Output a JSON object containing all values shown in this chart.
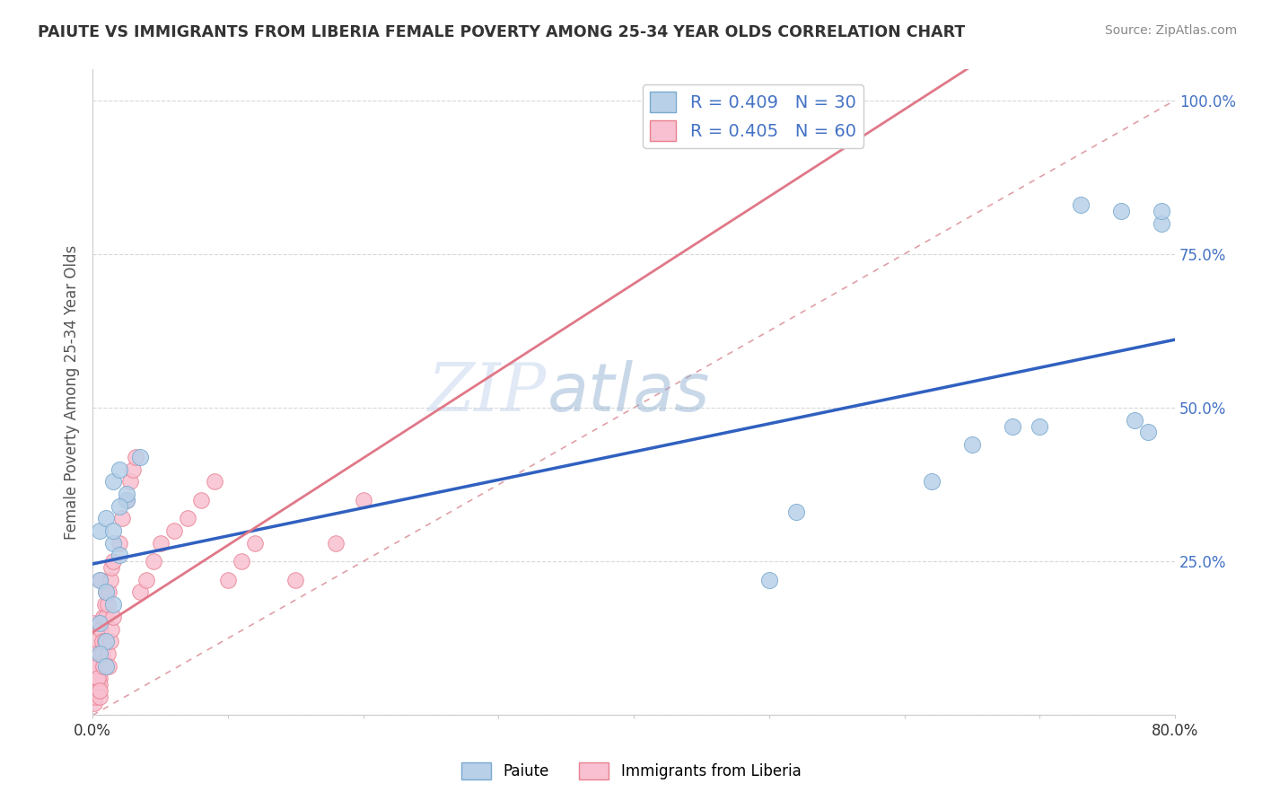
{
  "title": "PAIUTE VS IMMIGRANTS FROM LIBERIA FEMALE POVERTY AMONG 25-34 YEAR OLDS CORRELATION CHART",
  "source": "Source: ZipAtlas.com",
  "ylabel": "Female Poverty Among 25-34 Year Olds",
  "xlim": [
    0.0,
    0.8
  ],
  "ylim": [
    0.0,
    1.05
  ],
  "xticks": [
    0.0,
    0.1,
    0.2,
    0.3,
    0.4,
    0.5,
    0.6,
    0.7,
    0.8
  ],
  "xticklabels": [
    "0.0%",
    "",
    "",
    "",
    "",
    "",
    "",
    "",
    "80.0%"
  ],
  "ytick_positions": [
    0.0,
    0.25,
    0.5,
    0.75,
    1.0
  ],
  "yticklabels": [
    "",
    "25.0%",
    "50.0%",
    "75.0%",
    "100.0%"
  ],
  "paiute_R": 0.409,
  "paiute_N": 30,
  "liberia_R": 0.405,
  "liberia_N": 60,
  "paiute_color": "#b8d0e8",
  "paiute_edge_color": "#7aaad0",
  "liberia_color": "#f8c0d0",
  "liberia_edge_color": "#e88090",
  "regression_blue_color": "#3060c0",
  "regression_pink_color": "#e07888",
  "diagonal_color": "#e0a0a8",
  "watermark_color": "#c8d8ee",
  "legend_color": "#4472c4",
  "ytick_color": "#4472c4",
  "paiute_x": [
    0.005,
    0.01,
    0.015,
    0.02,
    0.005,
    0.01,
    0.015,
    0.025,
    0.005,
    0.01,
    0.005,
    0.01,
    0.015,
    0.02,
    0.025,
    0.035,
    0.02,
    0.015,
    0.5,
    0.52,
    0.62,
    0.65,
    0.68,
    0.7,
    0.73,
    0.76,
    0.77,
    0.78,
    0.79,
    0.79
  ],
  "paiute_y": [
    0.3,
    0.32,
    0.28,
    0.26,
    0.22,
    0.2,
    0.18,
    0.35,
    0.15,
    0.12,
    0.1,
    0.08,
    0.38,
    0.4,
    0.36,
    0.42,
    0.34,
    0.3,
    0.22,
    0.33,
    0.38,
    0.44,
    0.47,
    0.47,
    0.83,
    0.82,
    0.48,
    0.46,
    0.8,
    0.82
  ],
  "liberia_x": [
    0.001,
    0.002,
    0.003,
    0.004,
    0.005,
    0.001,
    0.002,
    0.003,
    0.004,
    0.005,
    0.001,
    0.002,
    0.003,
    0.004,
    0.005,
    0.001,
    0.002,
    0.003,
    0.004,
    0.005,
    0.006,
    0.007,
    0.008,
    0.009,
    0.01,
    0.006,
    0.007,
    0.008,
    0.009,
    0.01,
    0.011,
    0.012,
    0.013,
    0.014,
    0.015,
    0.011,
    0.012,
    0.013,
    0.014,
    0.015,
    0.02,
    0.022,
    0.025,
    0.028,
    0.03,
    0.032,
    0.035,
    0.04,
    0.045,
    0.05,
    0.06,
    0.07,
    0.08,
    0.09,
    0.1,
    0.11,
    0.12,
    0.15,
    0.18,
    0.2
  ],
  "liberia_y": [
    0.02,
    0.03,
    0.04,
    0.05,
    0.06,
    0.07,
    0.08,
    0.09,
    0.1,
    0.05,
    0.12,
    0.08,
    0.06,
    0.04,
    0.03,
    0.15,
    0.1,
    0.08,
    0.06,
    0.04,
    0.14,
    0.12,
    0.16,
    0.18,
    0.2,
    0.22,
    0.1,
    0.08,
    0.12,
    0.16,
    0.18,
    0.2,
    0.22,
    0.24,
    0.25,
    0.1,
    0.08,
    0.12,
    0.14,
    0.16,
    0.28,
    0.32,
    0.35,
    0.38,
    0.4,
    0.42,
    0.2,
    0.22,
    0.25,
    0.28,
    0.3,
    0.32,
    0.35,
    0.38,
    0.22,
    0.25,
    0.28,
    0.22,
    0.28,
    0.35
  ]
}
